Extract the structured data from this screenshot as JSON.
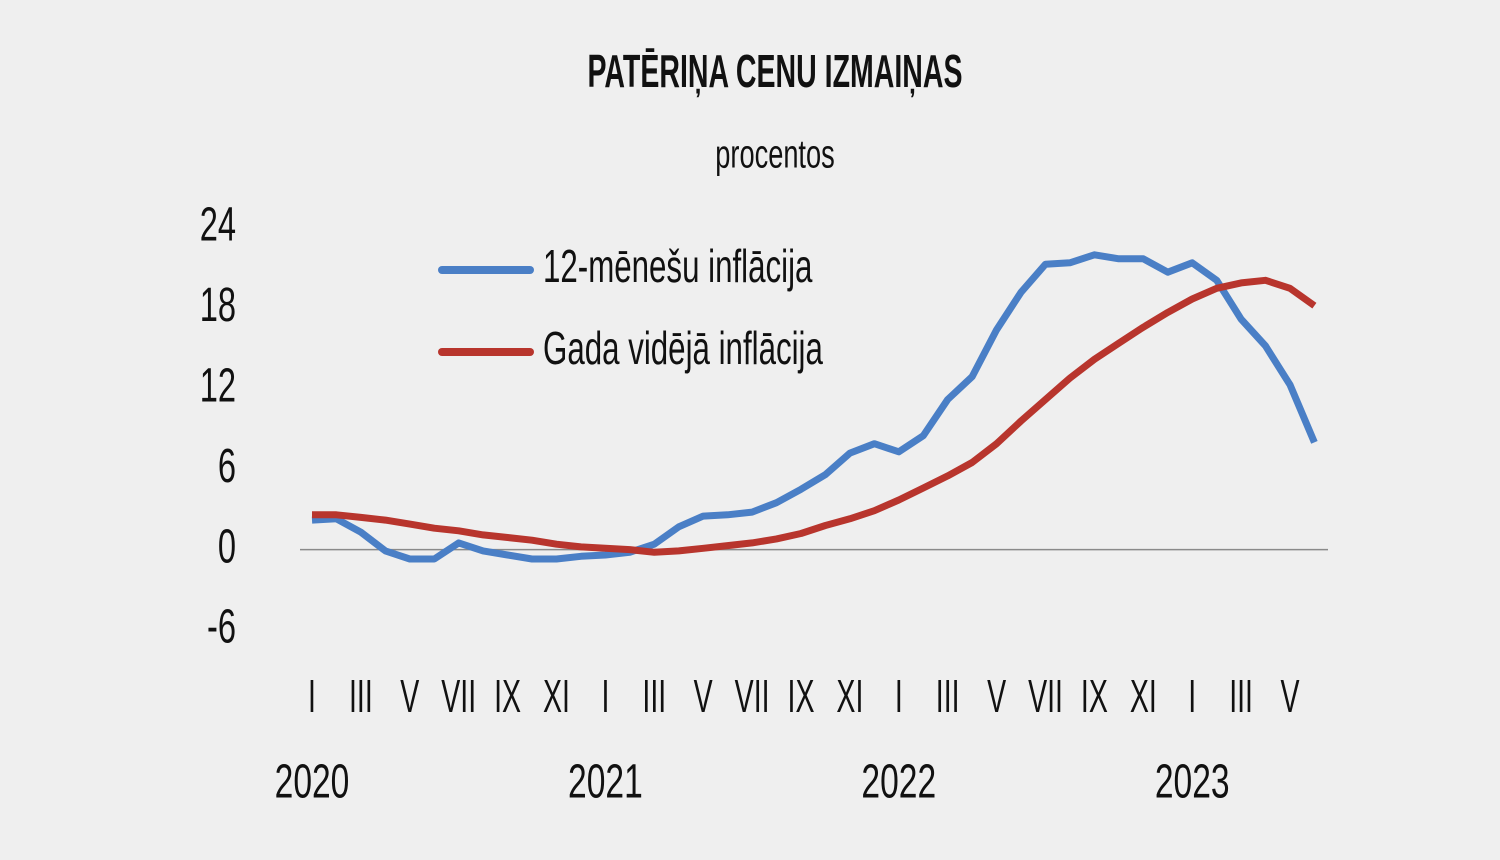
{
  "chart_data": {
    "type": "line",
    "title": "PATĒRIŅA CENU IZMAIŅAS",
    "subtitle": "procentos",
    "categories": [
      "I",
      null,
      "III",
      null,
      "V",
      null,
      "VII",
      null,
      "IX",
      null,
      "XI",
      null,
      "I",
      null,
      "III",
      null,
      "V",
      null,
      "VII",
      null,
      "IX",
      null,
      "XI",
      null,
      "I",
      null,
      "III",
      null,
      "V",
      null,
      "VII",
      null,
      "IX",
      null,
      "XI",
      null,
      "I",
      null,
      "III",
      null,
      "V",
      null
    ],
    "years": [
      "2020",
      null,
      null,
      null,
      null,
      null,
      null,
      null,
      null,
      null,
      null,
      null,
      "2021",
      null,
      null,
      null,
      null,
      null,
      null,
      null,
      null,
      null,
      null,
      null,
      "2022",
      null,
      null,
      null,
      null,
      null,
      null,
      null,
      null,
      null,
      null,
      null,
      "2023",
      null,
      null,
      null,
      null,
      null
    ],
    "series": [
      {
        "name": "12-mēnešu inflācija",
        "color": "#4a7fc6",
        "values": [
          2.2,
          2.3,
          1.3,
          -0.1,
          -0.7,
          -0.7,
          0.5,
          -0.1,
          -0.4,
          -0.7,
          -0.7,
          -0.5,
          -0.4,
          -0.2,
          0.4,
          1.7,
          2.5,
          2.6,
          2.8,
          3.5,
          4.5,
          5.6,
          7.2,
          7.9,
          7.3,
          8.5,
          11.2,
          12.9,
          16.4,
          19.2,
          21.3,
          21.4,
          22.0,
          21.7,
          21.7,
          20.7,
          21.4,
          20.1,
          17.2,
          15.2,
          12.3,
          8.0
        ]
      },
      {
        "name": "Gada vidējā inflācija",
        "color": "#b8352d",
        "values": [
          2.6,
          2.6,
          2.4,
          2.2,
          1.9,
          1.6,
          1.4,
          1.1,
          0.9,
          0.7,
          0.4,
          0.2,
          0.1,
          0.0,
          -0.2,
          -0.1,
          0.1,
          0.3,
          0.5,
          0.8,
          1.2,
          1.8,
          2.3,
          2.9,
          3.7,
          4.6,
          5.5,
          6.5,
          7.9,
          9.6,
          11.2,
          12.8,
          14.2,
          15.4,
          16.6,
          17.7,
          18.7,
          19.5,
          19.9,
          20.1,
          19.5,
          18.2
        ]
      }
    ],
    "ylim": [
      -6,
      24
    ],
    "yticks": [
      -6,
      0,
      6,
      12,
      18,
      24
    ],
    "grid": false
  }
}
